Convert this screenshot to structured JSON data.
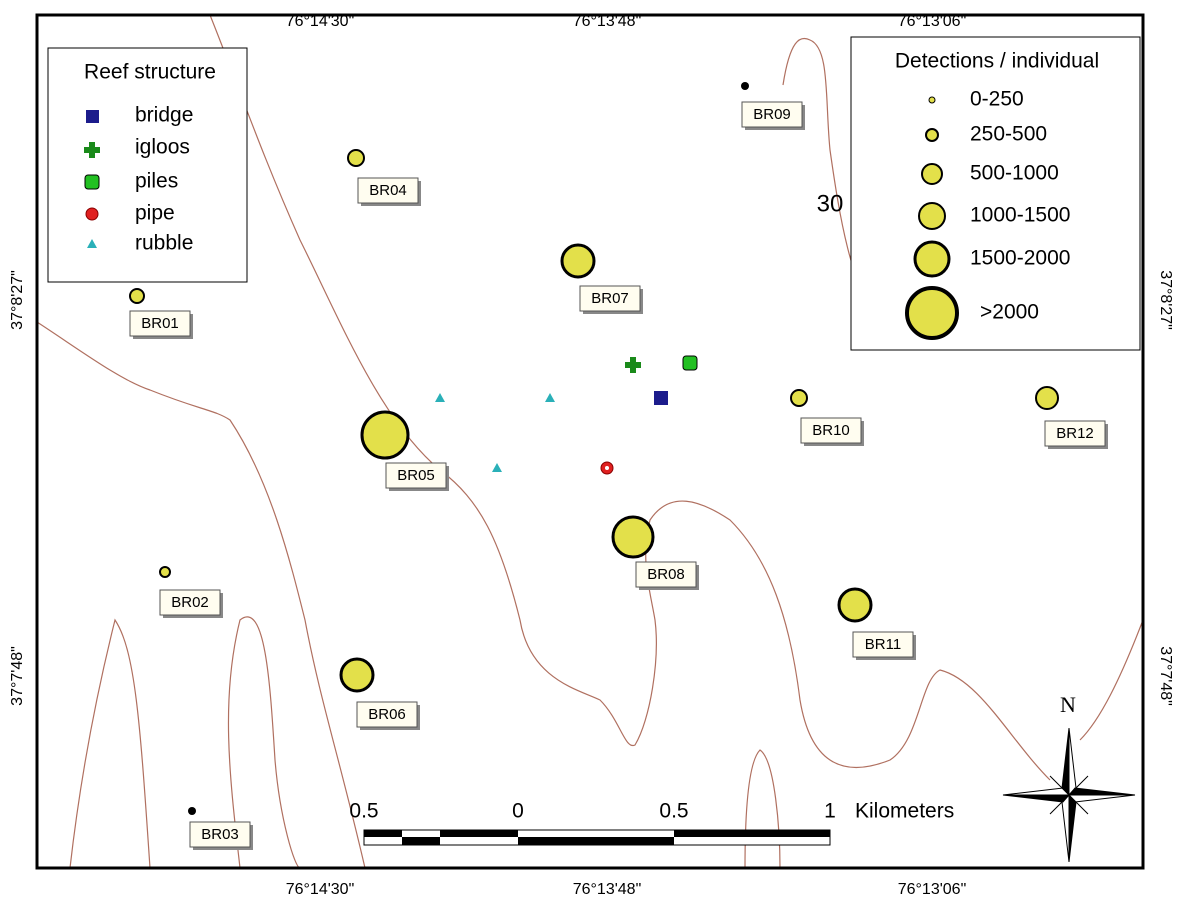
{
  "axes": {
    "top": [
      "76°14'30\"",
      "76°13'48\"",
      "76°13'06\""
    ],
    "bottom": [
      "76°14'30\"",
      "76°13'48\"",
      "76°13'06\""
    ],
    "left": [
      "37°8'27\"",
      "37°7'48\""
    ],
    "right": [
      "37°8'27\"",
      "37°7'48\""
    ]
  },
  "legend_structure": {
    "title": "Reef structure",
    "items": [
      "bridge",
      "igloos",
      "piles",
      "pipe",
      "rubble"
    ]
  },
  "legend_detections": {
    "title": "Detections / individual",
    "items": [
      "0-250",
      "250-500",
      "500-1000",
      "1000-1500",
      "1500-2000",
      ">2000"
    ]
  },
  "stations": [
    "BR01",
    "BR02",
    "BR03",
    "BR04",
    "BR05",
    "BR06",
    "BR07",
    "BR08",
    "BR09",
    "BR10",
    "BR11",
    "BR12"
  ],
  "contour_label": "30",
  "scale_bar": {
    "ticks": [
      "0.5",
      "0",
      "0.5",
      "1"
    ],
    "unit": "Kilometers"
  },
  "north": "N"
}
